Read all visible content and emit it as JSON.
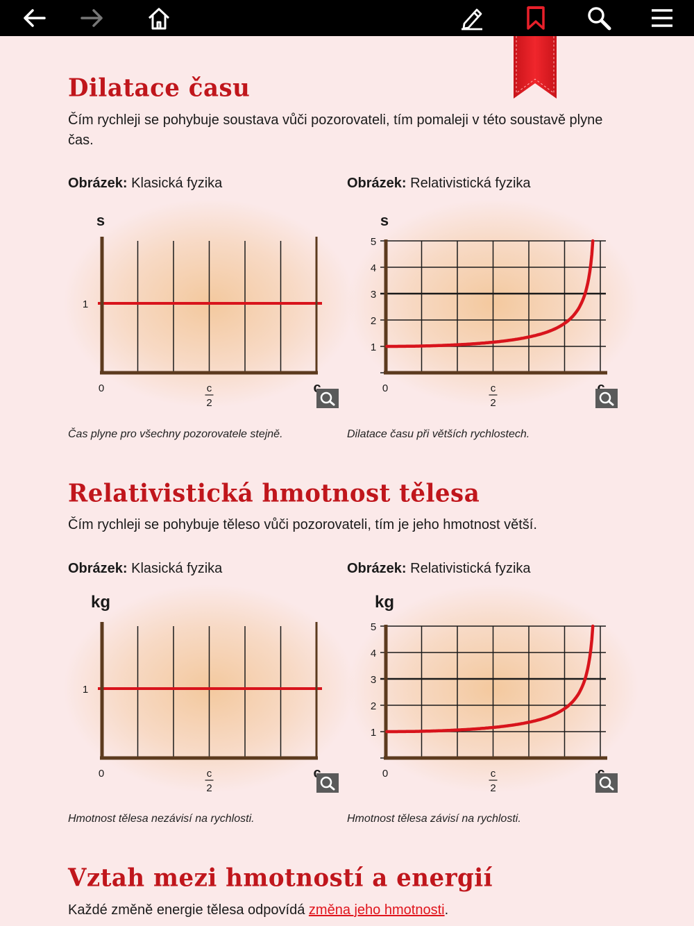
{
  "toolbar": {
    "icons": [
      "back-arrow-icon",
      "forward-arrow-icon",
      "home-icon",
      "pen-icon",
      "bookmark-icon",
      "search-icon",
      "menu-icon"
    ],
    "colors": {
      "background": "#000000",
      "icon": "#ffffff",
      "disabled": "#777777",
      "bookmark": "#e8202a"
    }
  },
  "sections": [
    {
      "title": "Dilatace času",
      "text": "Čím rychleji se pohybuje soustava vůči pozorovateli, tím pomaleji v této soustavě plyne čas.",
      "figures": [
        {
          "label_bold": "Obrázek:",
          "label_rest": " Klasická fyzika",
          "caption": "Čas plyne pro všechny pozorovatele stejně."
        },
        {
          "label_bold": "Obrázek:",
          "label_rest": " Relativistická fyzika",
          "caption": "Dilatace času při větších rychlostech."
        }
      ]
    },
    {
      "title": "Relativistická hmotnost tělesa",
      "text": "Čím rychleji se pohybuje těleso vůči pozorovateli, tím je jeho hmotnost větší.",
      "figures": [
        {
          "label_bold": "Obrázek:",
          "label_rest": " Klasická fyzika",
          "caption": "Hmotnost tělesa nezávisí na rychlosti."
        },
        {
          "label_bold": "Obrázek:",
          "label_rest": " Relativistická fyzika",
          "caption": "Hmotnost tělesa závisí na rychlosti."
        }
      ]
    },
    {
      "title": "Vztah mezi hmotností a energií",
      "text_before_link": "Každé změně energie tělesa odpovídá ",
      "link": "změna jeho hmotnosti",
      "text_after_link": "."
    }
  ],
  "chart_data": [
    {
      "type": "line",
      "ylabel": "s",
      "x_ticks": [
        "0",
        "c/2",
        "c"
      ],
      "y_ticks": [
        "1"
      ],
      "ylim": [
        0,
        2.5
      ],
      "xlim": [
        0,
        1
      ],
      "series": [
        {
          "x": [
            0,
            1
          ],
          "values": [
            1,
            1
          ]
        }
      ]
    },
    {
      "type": "line",
      "ylabel": "s",
      "x_ticks": [
        "0",
        "c/2",
        "c"
      ],
      "y_ticks": [
        "1",
        "2",
        "3",
        "4",
        "5"
      ],
      "ylim": [
        0,
        5
      ],
      "xlim": [
        0,
        1
      ],
      "series": [
        {
          "function": "1/sqrt(1-v^2/c^2)",
          "x": [
            0,
            0.5,
            0.8,
            0.9,
            0.95,
            0.98,
            0.99
          ],
          "values": [
            1,
            1.15,
            1.67,
            2.29,
            3.2,
            5.03,
            7.09
          ]
        }
      ]
    },
    {
      "type": "line",
      "ylabel": "kg",
      "x_ticks": [
        "0",
        "c/2",
        "c"
      ],
      "y_ticks": [
        "1"
      ],
      "ylim": [
        0,
        2.5
      ],
      "xlim": [
        0,
        1
      ],
      "series": [
        {
          "x": [
            0,
            1
          ],
          "values": [
            1,
            1
          ]
        }
      ]
    },
    {
      "type": "line",
      "ylabel": "kg",
      "x_ticks": [
        "0",
        "c/2",
        "c"
      ],
      "y_ticks": [
        "1",
        "2",
        "3",
        "4",
        "5"
      ],
      "ylim": [
        0,
        5
      ],
      "xlim": [
        0,
        1
      ],
      "series": [
        {
          "function": "1/sqrt(1-v^2/c^2)",
          "x": [
            0,
            0.5,
            0.8,
            0.9,
            0.95,
            0.98,
            0.99
          ],
          "values": [
            1,
            1.15,
            1.67,
            2.29,
            3.2,
            5.03,
            7.09
          ]
        }
      ]
    }
  ],
  "chart_colors": {
    "axis": "#5c3a1e",
    "curve": "#d8141c",
    "grid": "#1a1a1a",
    "glow": "#f3c79a"
  }
}
